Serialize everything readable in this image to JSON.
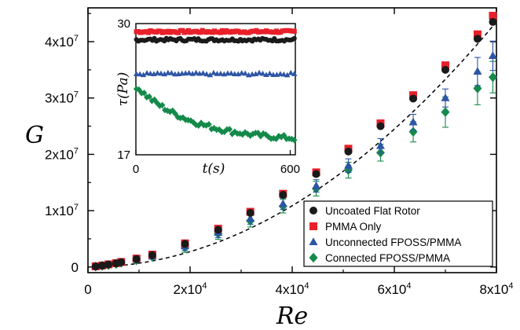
{
  "chart_data": {
    "type": "scatter",
    "xlabel": "Re",
    "ylabel": "G",
    "xlim": [
      0,
      80000
    ],
    "ylim": [
      -1000000,
      46000000
    ],
    "x_ticks": [
      {
        "value": 0,
        "base": "0",
        "exp": ""
      },
      {
        "value": 20000,
        "base": "2x10",
        "exp": "4"
      },
      {
        "value": 40000,
        "base": "4x10",
        "exp": "4"
      },
      {
        "value": 60000,
        "base": "6x10",
        "exp": "4"
      },
      {
        "value": 80000,
        "base": "8x10",
        "exp": "4"
      }
    ],
    "y_ticks": [
      {
        "value": 0,
        "base": "0",
        "exp": ""
      },
      {
        "value": 10000000,
        "base": "1x10",
        "exp": "7"
      },
      {
        "value": 20000000,
        "base": "2x10",
        "exp": "7"
      },
      {
        "value": 30000000,
        "base": "3x10",
        "exp": "7"
      },
      {
        "value": 40000000,
        "base": "4x10",
        "exp": "7"
      }
    ],
    "x": [
      1500,
      2800,
      4000,
      5500,
      6500,
      9500,
      12600,
      19000,
      25500,
      31800,
      38200,
      44700,
      51000,
      57300,
      63700,
      70000,
      76300,
      79300
    ],
    "series": [
      {
        "name": "Uncoated Flat Rotor",
        "marker": "circle",
        "color": "#1a1a1a",
        "values": [
          100000,
          250000,
          450000,
          650000,
          850000,
          1400000,
          2100000,
          4100000,
          6600000,
          9600000,
          12800000,
          16500000,
          20500000,
          25000000,
          29900000,
          35000000,
          40500000,
          43500000
        ],
        "errors": [
          0,
          0,
          0,
          0,
          0,
          0,
          0,
          0,
          0,
          0,
          0,
          0,
          0,
          0,
          0,
          0,
          0,
          0
        ]
      },
      {
        "name": "PMMA Only",
        "marker": "square",
        "color": "#e8202a",
        "values": [
          120000,
          270000,
          470000,
          680000,
          900000,
          1500000,
          2200000,
          4200000,
          6800000,
          9800000,
          13000000,
          16800000,
          21000000,
          25500000,
          30500000,
          35800000,
          41300000,
          44600000
        ],
        "errors": [
          0,
          0,
          0,
          0,
          0,
          0,
          0,
          0,
          0,
          0,
          0,
          0,
          0,
          0,
          0,
          0,
          0,
          0
        ]
      },
      {
        "name": "Unconnected FPOSS/PMMA",
        "marker": "triangle",
        "color": "#2d55a5",
        "values": [
          100000,
          230000,
          400000,
          600000,
          800000,
          1300000,
          1900000,
          3700000,
          6100000,
          8600000,
          11200000,
          14400000,
          18000000,
          21500000,
          25700000,
          30000000,
          34700000,
          37500000
        ],
        "errors": [
          0,
          0,
          0,
          0,
          0,
          200000,
          300000,
          800000,
          900000,
          1000000,
          1000000,
          1100000,
          1200000,
          1300000,
          1400000,
          1600000,
          2500000,
          2600000
        ]
      },
      {
        "name": "Connected FPOSS/PMMA",
        "marker": "diamond",
        "color": "#148a4a",
        "values": [
          80000,
          200000,
          350000,
          550000,
          750000,
          1200000,
          1800000,
          3500000,
          5900000,
          8200000,
          10800000,
          13900000,
          17200000,
          20300000,
          24000000,
          27500000,
          31700000,
          33700000
        ],
        "errors": [
          0,
          0,
          0,
          0,
          0,
          200000,
          300000,
          900000,
          1000000,
          1100000,
          1200000,
          1300000,
          1400000,
          1500000,
          1800000,
          2700000,
          2900000,
          2800000
        ]
      }
    ],
    "fit_curve": {
      "style": "dashed",
      "color": "#000000",
      "coefficient": 0.0068,
      "exponent": 2
    },
    "legend_position": "bottom-right",
    "inset": {
      "type": "scatter",
      "xlabel": "t(s)",
      "ylabel": "τ(Pa)",
      "xlim": [
        0,
        620
      ],
      "ylim": [
        17,
        30
      ],
      "x_ticks": [
        "0",
        "600"
      ],
      "y_ticks": [
        "30",
        "17"
      ],
      "series": [
        {
          "name": "PMMA Only",
          "marker": "square",
          "color": "#e8202a",
          "level": 29.2,
          "noise": 0.12
        },
        {
          "name": "Uncoated Flat Rotor",
          "marker": "circle",
          "color": "#1a1a1a",
          "level": 28.4,
          "noise": 0.15
        },
        {
          "name": "Unconnected FPOSS/PMMA",
          "marker": "triangle",
          "color": "#2d55a5",
          "level": 25.0,
          "noise": 0.12
        },
        {
          "name": "Connected FPOSS/PMMA",
          "marker": "diamond",
          "color": "#148a4a",
          "start": 23.8,
          "end": 18.3,
          "tau": 220,
          "noise": 0.25
        }
      ]
    }
  }
}
